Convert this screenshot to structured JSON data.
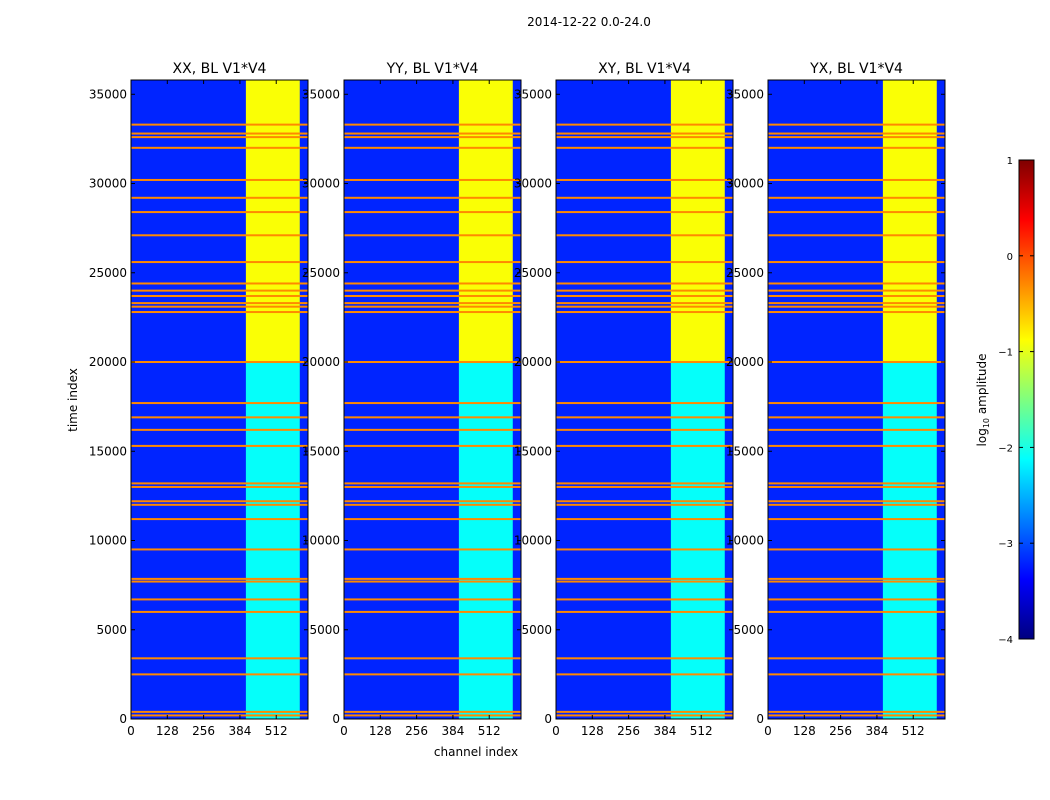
{
  "chart_data": {
    "type": "heatmap",
    "title": "2014-12-22 0.0-24.0",
    "xlabel": "channel index",
    "ylabel": "time index",
    "xlim": [
      0,
      624
    ],
    "ylim": [
      0,
      35800
    ],
    "xticks": [
      0,
      128,
      256,
      384,
      512
    ],
    "yticks": [
      0,
      5000,
      10000,
      15000,
      20000,
      25000,
      30000,
      35000
    ],
    "colorbar": {
      "label": "log",
      "label_sub": "10",
      "label_rest": " amplitude",
      "range": [
        -4,
        1
      ],
      "ticks": [
        1,
        0,
        -1,
        -2,
        -3,
        -4
      ],
      "tick_labels": [
        "1",
        "0",
        "−1",
        "−2",
        "−3",
        "−4"
      ],
      "colormap": "jet",
      "colors": [
        "#00007f",
        "#0000ff",
        "#007fff",
        "#00ffff",
        "#7fff7f",
        "#ffff00",
        "#ff7f00",
        "#ff0000",
        "#7f0000"
      ]
    },
    "background_log_amplitude": -3.2,
    "panels": [
      {
        "title": "XX, BL V1*V4"
      },
      {
        "title": "YY, BL V1*V4"
      },
      {
        "title": "XY, BL V1*V4"
      },
      {
        "title": "YX, BL V1*V4"
      }
    ],
    "signal_band_channels": [
      405,
      595
    ],
    "signal_time_split": 20000,
    "signal_log_amplitude_upper": -0.9,
    "signal_log_amplitude_lower": -2.1,
    "flagged_rows_time_index": [
      200,
      400,
      2500,
      3400,
      6000,
      6700,
      7700,
      7850,
      9500,
      11200,
      12000,
      12200,
      13000,
      13200,
      15300,
      16200,
      16900,
      17700,
      20000,
      22800,
      23100,
      23300,
      23700,
      24000,
      24400,
      25600,
      27100,
      28400,
      29200,
      30200,
      32000,
      32600,
      32800,
      33300
    ],
    "flagged_row_log_amplitude": -0.3
  }
}
